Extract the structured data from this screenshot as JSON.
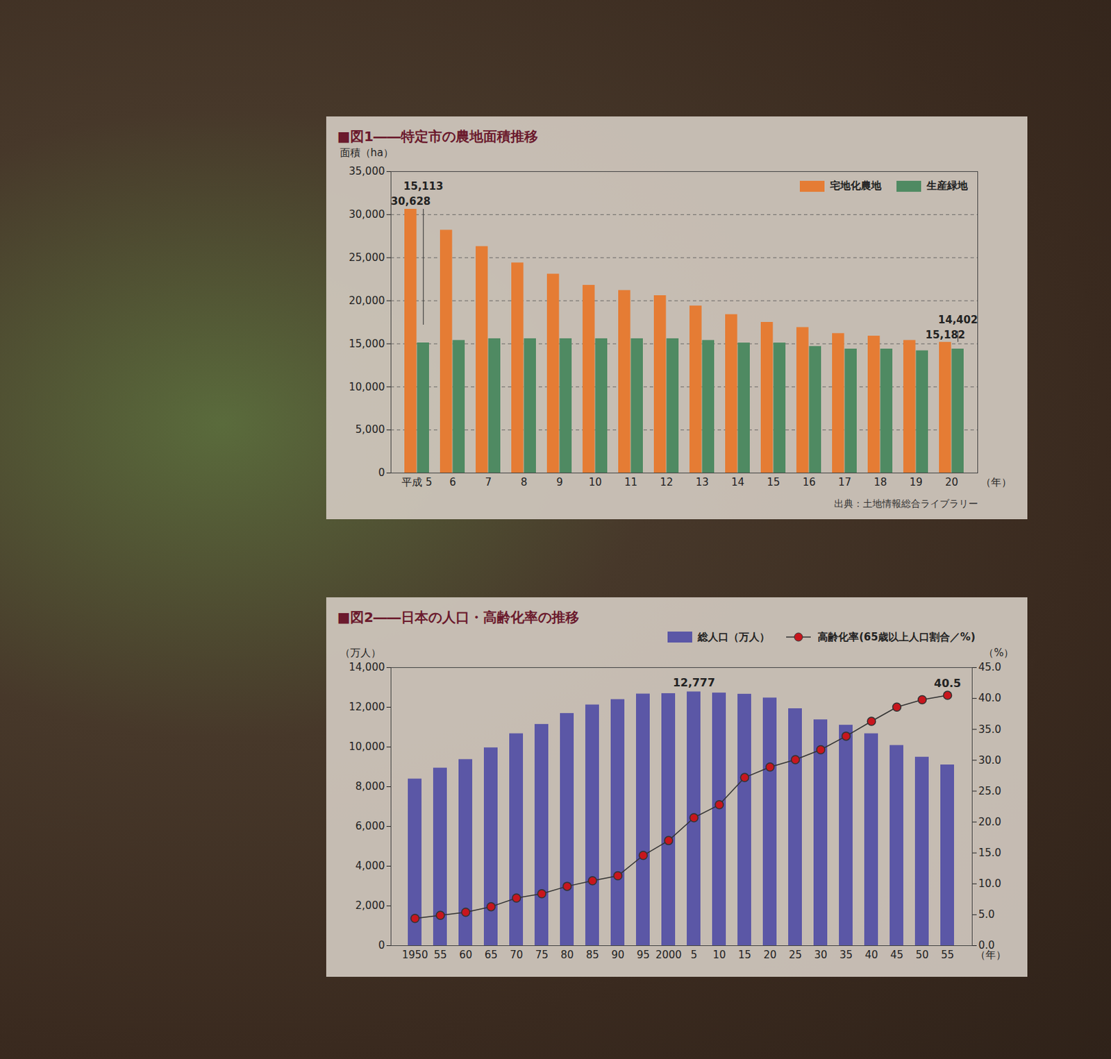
{
  "chart_data": [
    {
      "type": "bar",
      "title": "■図1――特定市の農地面積推移",
      "y_label": "面積（ha）",
      "x_label": "（年）",
      "caption": "出典：土地情報総合ライブラリー",
      "categories": [
        "平成 5",
        "6",
        "7",
        "8",
        "9",
        "10",
        "11",
        "12",
        "13",
        "14",
        "15",
        "16",
        "17",
        "18",
        "19",
        "20"
      ],
      "series": [
        {
          "name": "宅地化農地",
          "color": "#e57c34",
          "values": [
            30628,
            28200,
            26300,
            24400,
            23100,
            21800,
            21200,
            20600,
            19400,
            18400,
            17500,
            16900,
            16200,
            15900,
            15400,
            15182
          ],
          "value_labels": [
            "30,628",
            null,
            null,
            null,
            null,
            null,
            null,
            null,
            null,
            null,
            null,
            null,
            null,
            null,
            null,
            "15,182"
          ]
        },
        {
          "name": "生産緑地",
          "color": "#4f8a62",
          "values": [
            15113,
            15400,
            15600,
            15600,
            15600,
            15600,
            15600,
            15600,
            15400,
            15100,
            15100,
            14700,
            14400,
            14400,
            14200,
            14402
          ],
          "value_labels": [
            "15,113",
            null,
            null,
            null,
            null,
            null,
            null,
            null,
            null,
            null,
            null,
            null,
            null,
            null,
            null,
            "14,402"
          ]
        }
      ],
      "ylim": [
        0,
        35000
      ],
      "yticks": [
        0,
        {
          "value": 5000,
          "label": "5,000"
        },
        {
          "value": 10000,
          "label": "10,000"
        },
        {
          "value": 15000,
          "label": "15,000"
        },
        {
          "value": 20000,
          "label": "20,000"
        },
        {
          "value": 25000,
          "label": "25,000"
        },
        {
          "value": 30000,
          "label": "30,000"
        },
        {
          "value": 35000,
          "label": "35,000"
        }
      ],
      "grid": true,
      "legend": "top-right"
    },
    {
      "type": "bar",
      "title": "■図2――日本の人口・高齢化率の推移",
      "y_label": "（万人）",
      "y2_label": "（%）",
      "x_label": "（年）",
      "categories": [
        "1950",
        "55",
        "60",
        "65",
        "70",
        "75",
        "80",
        "85",
        "90",
        "95",
        "2000",
        "5",
        "10",
        "15",
        "20",
        "25",
        "30",
        "35",
        "40",
        "45",
        "50",
        "55"
      ],
      "series": [
        {
          "name": "総人口（万人）",
          "type": "bar",
          "color": "#5b57a6",
          "values": [
            8390,
            8940,
            9370,
            9960,
            10670,
            11140,
            11690,
            12120,
            12390,
            12670,
            12690,
            12777,
            12720,
            12660,
            12470,
            11930,
            11370,
            11100,
            10670,
            10080,
            9490,
            9100
          ],
          "value_labels": [
            null,
            null,
            null,
            null,
            null,
            null,
            null,
            null,
            null,
            null,
            null,
            "12,777",
            null,
            null,
            null,
            null,
            null,
            null,
            null,
            null,
            null,
            null
          ]
        },
        {
          "name": "高齢化率(65歳以上人口割合／%)",
          "type": "line",
          "axis": "y2",
          "color": "#c8161d",
          "marker": "circle",
          "values": [
            4.4,
            4.9,
            5.4,
            6.3,
            7.7,
            8.4,
            9.6,
            10.5,
            11.3,
            14.6,
            17.0,
            20.7,
            22.8,
            27.2,
            28.9,
            30.1,
            31.7,
            33.9,
            36.3,
            38.6,
            39.8,
            40.5
          ],
          "value_labels": [
            null,
            null,
            null,
            null,
            null,
            null,
            null,
            null,
            null,
            null,
            null,
            null,
            null,
            null,
            null,
            null,
            null,
            null,
            null,
            null,
            null,
            "40.5"
          ]
        }
      ],
      "ylim": [
        0,
        14000
      ],
      "yticks": [
        0,
        {
          "value": 2000,
          "label": "2,000"
        },
        {
          "value": 4000,
          "label": "4,000"
        },
        {
          "value": 6000,
          "label": "6,000"
        },
        {
          "value": 8000,
          "label": "8,000"
        },
        {
          "value": 10000,
          "label": "10,000"
        },
        {
          "value": 12000,
          "label": "12,000"
        },
        {
          "value": 14000,
          "label": "14,000"
        }
      ],
      "y2lim": [
        0,
        45
      ],
      "y2ticks": [
        {
          "value": 0,
          "label": "0.0"
        },
        {
          "value": 5,
          "label": "5.0"
        },
        {
          "value": 10,
          "label": "10.0"
        },
        {
          "value": 15,
          "label": "15.0"
        },
        {
          "value": 20,
          "label": "20.0"
        },
        {
          "value": 25,
          "label": "25.0"
        },
        {
          "value": 30,
          "label": "30.0"
        },
        {
          "value": 35,
          "label": "35.0"
        },
        {
          "value": 40,
          "label": "40.0"
        },
        {
          "value": 45,
          "label": "45.0"
        }
      ],
      "grid": false,
      "legend": "top"
    }
  ]
}
